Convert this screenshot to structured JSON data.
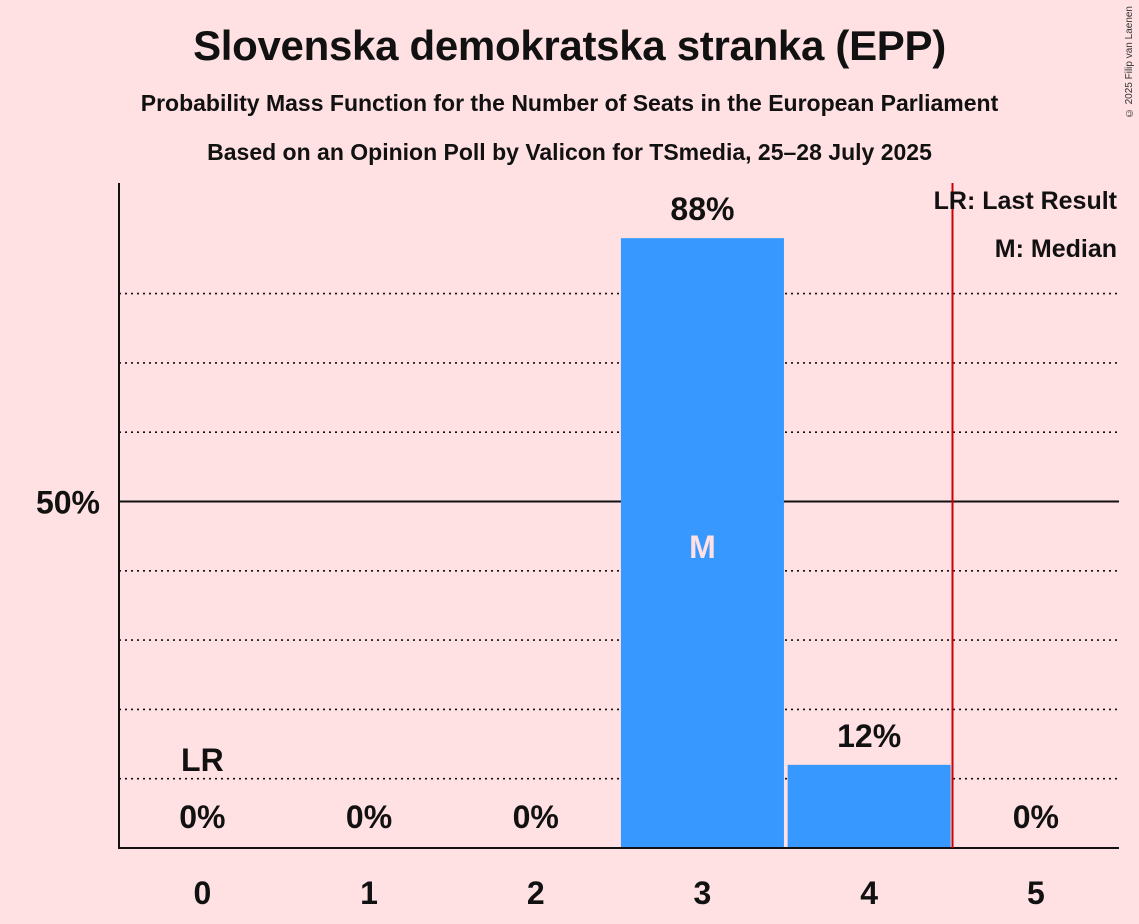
{
  "chart_data": {
    "type": "bar",
    "title": "Slovenska demokratska stranka (EPP)",
    "subtitle": "Probability Mass Function for the Number of Seats in the European Parliament",
    "subtitle2": "Based on an Opinion Poll by Valicon for TSmedia, 25–28 July 2025",
    "copyright": "© 2025 Filip van Laenen",
    "categories": [
      "0",
      "1",
      "2",
      "3",
      "4",
      "5"
    ],
    "values": [
      0,
      0,
      0,
      88,
      12,
      0
    ],
    "value_labels": [
      "0%",
      "0%",
      "0%",
      "88%",
      "12%",
      "0%"
    ],
    "ylim": [
      0,
      96
    ],
    "y_tick": {
      "value": 50,
      "label": "50%"
    },
    "gridlines": [
      10,
      20,
      30,
      40,
      60,
      70,
      80
    ],
    "last_result": {
      "category": "0",
      "label": "LR",
      "line_after_category": "4"
    },
    "median": {
      "category": "3",
      "label": "M"
    },
    "legend": [
      "LR: Last Result",
      "M: Median"
    ],
    "colors": {
      "bar": "#3799ff",
      "background": "#ffe0e3",
      "lr_line": "#cc0000"
    }
  }
}
